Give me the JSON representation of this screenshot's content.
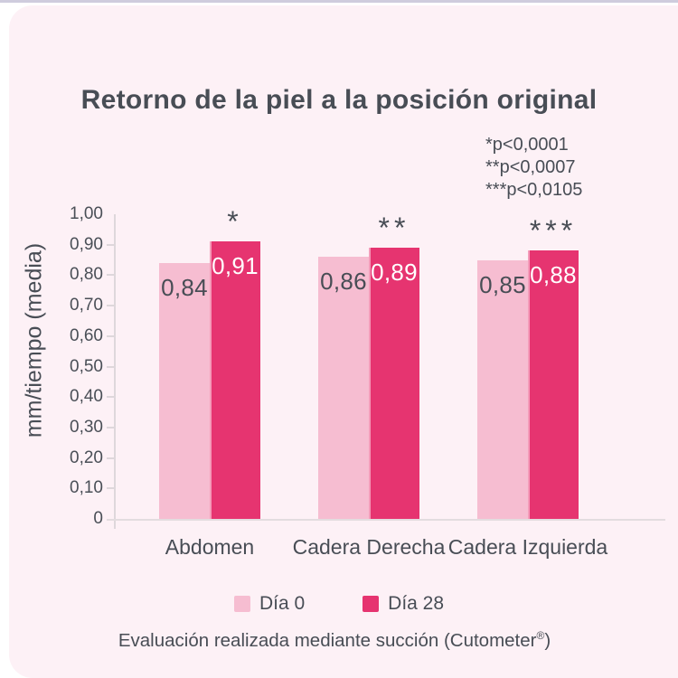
{
  "title": {
    "bold": "Retorno de la piel",
    "regular": " a la posición original"
  },
  "annotations": [
    "*p<0,0001",
    "**p<0,0007",
    "***p<0,0105"
  ],
  "chart_data": {
    "type": "bar",
    "title": "Retorno de la piel a la posición original",
    "categories": [
      "Abdomen",
      "Cadera Derecha",
      "Cadera Izquierda"
    ],
    "series": [
      {
        "name": "Día 0",
        "values": [
          0.84,
          0.86,
          0.85
        ],
        "value_labels": [
          "0,84",
          "0,86",
          "0,85"
        ],
        "color": "#f6bdd1"
      },
      {
        "name": "Día 28",
        "values": [
          0.91,
          0.89,
          0.88
        ],
        "value_labels": [
          "0,91",
          "0,89",
          "0,88"
        ],
        "significance": [
          "*",
          "**",
          "***"
        ],
        "color": "#e63470"
      }
    ],
    "xlabel": "",
    "ylabel": "mm/tiempo (media)",
    "ylim": [
      0,
      1.0
    ],
    "ytick_labels": [
      "0",
      "0,10",
      "0,20",
      "0,30",
      "0,40",
      "0,50",
      "0,60",
      "0,70",
      "0,80",
      "0,90",
      "1,00"
    ],
    "grid": false,
    "legend_position": "bottom"
  },
  "legend": [
    {
      "label": "Día 0",
      "color": "#f6bdd1"
    },
    {
      "label": "Día 28",
      "color": "#e63470"
    }
  ],
  "footer": {
    "main": "Evaluación realizada mediante succión (Cutometer",
    "registered": "®",
    "close": ")"
  },
  "colors": {
    "background_card": "#fdf1f6",
    "page_background": "#ffffff",
    "top_line": "#cfccdd",
    "bar_light": "#f6bdd1",
    "bar_dark": "#e63470",
    "text_dark": "#484d55",
    "axis": "#ded7db"
  }
}
